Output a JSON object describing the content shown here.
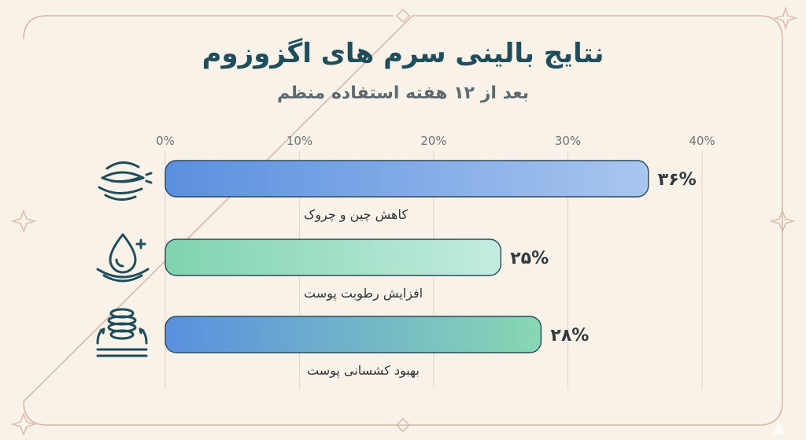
{
  "colors": {
    "background": "#f8f2e9",
    "frame": "#d8b9a8",
    "title": "#1f4d5b",
    "icon": "#1f4d5b",
    "bar_blue": "#5f95e0",
    "bar_green": "#88d6b2"
  },
  "chart_data": {
    "type": "bar",
    "orientation": "horizontal",
    "title": "نتایج بالینی سرم های اگزوزوم",
    "subtitle": "بعد از ۱۲ هفته استفاده منظم",
    "xlim": [
      0,
      40
    ],
    "x_ticks": [
      "0%",
      "10%",
      "20%",
      "30%",
      "40%"
    ],
    "grid": true,
    "categories": [
      "کاهش چین و چروک",
      "افزایش رطوبت پوست",
      "بهبود کشسانی پوست"
    ],
    "values": [
      36,
      25,
      28
    ],
    "value_labels": [
      "۳۶%",
      "۲۵%",
      "۲۸%"
    ],
    "icons": [
      "eye-wrinkle-icon",
      "water-drop-plus-icon",
      "spring-elasticity-icon"
    ],
    "bar_styles": [
      "blue-gradient",
      "green-gradient",
      "blue-green-gradient"
    ]
  }
}
